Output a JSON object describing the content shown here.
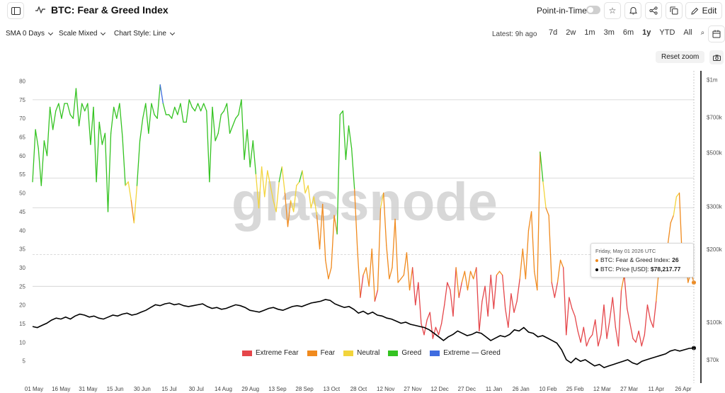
{
  "header": {
    "title": "BTC: Fear & Greed Index",
    "point_in_time_label": "Point-in-Time",
    "edit_label": "Edit"
  },
  "controls": {
    "sma": "SMA 0 Days",
    "scale": "Scale Mixed",
    "style": "Chart Style: Line",
    "latest": "Latest: 9h ago",
    "ranges": [
      "7d",
      "2w",
      "1m",
      "3m",
      "6m",
      "1y",
      "YTD",
      "All"
    ],
    "active_range": "1y",
    "reset_zoom": "Reset zoom"
  },
  "watermark": "glassnode",
  "legend": [
    {
      "label": "Extreme Fear",
      "color": "#e5464a"
    },
    {
      "label": "Fear",
      "color": "#f08a1e"
    },
    {
      "label": "Neutral",
      "color": "#f2d43c"
    },
    {
      "label": "Greed",
      "color": "#34c321"
    },
    {
      "label": "Extreme — Greed",
      "color": "#3f6ce0"
    }
  ],
  "tooltip": {
    "date": "Friday, May 01 2026 UTC",
    "fng_label": "BTC: Fear & Greed Index:",
    "fng_value": "26",
    "price_label": "BTC: Price [USD]:",
    "price_value": "$78,217.77"
  },
  "chart_data": {
    "type": "line",
    "x_ticks": [
      "01 May",
      "16 May",
      "31 May",
      "15 Jun",
      "30 Jun",
      "15 Jul",
      "30 Jul",
      "14 Aug",
      "29 Aug",
      "13 Sep",
      "28 Sep",
      "13 Oct",
      "28 Oct",
      "12 Nov",
      "27 Nov",
      "12 Dec",
      "27 Dec",
      "11 Jan",
      "26 Jan",
      "10 Feb",
      "25 Feb",
      "12 Mar",
      "27 Mar",
      "11 Apr",
      "26 Apr"
    ],
    "left_axis": {
      "ticks": [
        5,
        10,
        15,
        20,
        25,
        30,
        35,
        40,
        45,
        50,
        55,
        60,
        65,
        70,
        75,
        80
      ],
      "ylim": [
        0,
        82
      ]
    },
    "right_axis": {
      "ticks": [
        "$70k",
        "$100k",
        "$200k",
        "$300k",
        "$500k",
        "$700k",
        "$1m"
      ],
      "tick_values": [
        70000,
        100000,
        200000,
        300000,
        500000,
        700000,
        1000000
      ],
      "scale": "log"
    },
    "color_bands": {
      "extreme_fear_max": 25,
      "fear_max": 46,
      "neutral_max": 54,
      "greed_max": 75
    },
    "series": [
      {
        "name": "BTC: Fear & Greed Index",
        "axis": "left",
        "values": [
          53,
          67,
          62,
          52,
          64,
          60,
          73,
          67,
          72,
          74,
          70,
          74,
          74,
          71,
          70,
          78,
          68,
          74,
          72,
          74,
          63,
          73,
          53,
          69,
          63,
          66,
          45,
          66,
          73,
          70,
          74,
          65,
          52,
          53,
          48,
          42,
          52,
          64,
          70,
          74,
          66,
          74,
          71,
          70,
          79,
          74,
          71,
          71,
          70,
          73,
          71,
          74,
          69,
          69,
          75,
          73,
          72,
          74,
          72,
          74,
          72,
          53,
          73,
          64,
          66,
          71,
          72,
          74,
          66,
          68,
          70,
          71,
          75,
          59,
          67,
          57,
          64,
          55,
          46,
          57,
          49,
          56,
          52,
          48,
          45,
          53,
          57,
          50,
          41,
          48,
          45,
          52,
          53,
          56,
          50,
          52,
          46,
          49,
          44,
          35,
          47,
          32,
          27,
          30,
          44,
          39,
          71,
          72,
          59,
          68,
          62,
          51,
          35,
          22,
          28,
          30,
          25,
          35,
          21,
          24,
          46,
          50,
          36,
          27,
          30,
          43,
          26,
          27,
          28,
          34,
          24,
          30,
          20,
          26,
          15,
          12,
          16,
          18,
          11,
          14,
          12,
          15,
          20,
          26,
          24,
          17,
          30,
          22,
          26,
          29,
          24,
          29,
          27,
          30,
          13,
          21,
          25,
          17,
          28,
          19,
          28,
          29,
          28,
          19,
          14,
          23,
          18,
          21,
          27,
          35,
          27,
          40,
          45,
          29,
          24,
          61,
          53,
          46,
          44,
          26,
          22,
          26,
          32,
          30,
          12,
          22,
          19,
          17,
          13,
          10,
          14,
          9,
          11,
          12,
          16,
          9,
          12,
          20,
          11,
          16,
          22,
          14,
          9,
          24,
          28,
          19,
          15,
          11,
          10,
          13,
          9,
          12,
          20,
          16,
          14,
          21,
          30,
          36,
          33,
          36,
          42,
          44,
          49,
          50,
          32,
          34,
          26,
          29,
          26
        ],
        "colored_by_value": true
      },
      {
        "name": "BTC: Price [USD]",
        "axis": "right",
        "color": "#000000",
        "values": [
          96000,
          95000,
          97000,
          99000,
          102000,
          104000,
          103000,
          105000,
          103000,
          106000,
          108000,
          107000,
          105000,
          106000,
          104000,
          103000,
          105000,
          107000,
          106000,
          108000,
          109000,
          107000,
          108000,
          110000,
          112000,
          115000,
          118000,
          117000,
          119000,
          120000,
          118000,
          119000,
          117000,
          116000,
          117000,
          118000,
          119000,
          116000,
          114000,
          115000,
          113000,
          114000,
          116000,
          118000,
          117000,
          115000,
          112000,
          111000,
          110000,
          112000,
          114000,
          115000,
          113000,
          112000,
          114000,
          116000,
          117000,
          116000,
          118000,
          120000,
          121000,
          122000,
          124000,
          123000,
          119000,
          117000,
          115000,
          116000,
          113000,
          109000,
          111000,
          108000,
          110000,
          107000,
          106000,
          104000,
          103000,
          101000,
          99000,
          100000,
          98000,
          97000,
          96000,
          95000,
          93000,
          90000,
          87000,
          84000,
          87000,
          89000,
          92000,
          90000,
          88000,
          89000,
          91000,
          90000,
          87000,
          84000,
          86000,
          88000,
          87000,
          89000,
          93000,
          92000,
          95000,
          91000,
          90000,
          87000,
          88000,
          86000,
          84000,
          82000,
          77000,
          70000,
          68000,
          71000,
          69000,
          70000,
          68000,
          66000,
          67000,
          65000,
          66000,
          67000,
          68000,
          69000,
          70000,
          68000,
          67000,
          69000,
          70000,
          71000,
          72000,
          73000,
          74000,
          76000,
          77000,
          76000,
          77000,
          78000,
          78217.77
        ]
      }
    ],
    "current": {
      "date": "May 01 2026",
      "fng": 26,
      "price": 78217.77
    },
    "grid": true
  }
}
